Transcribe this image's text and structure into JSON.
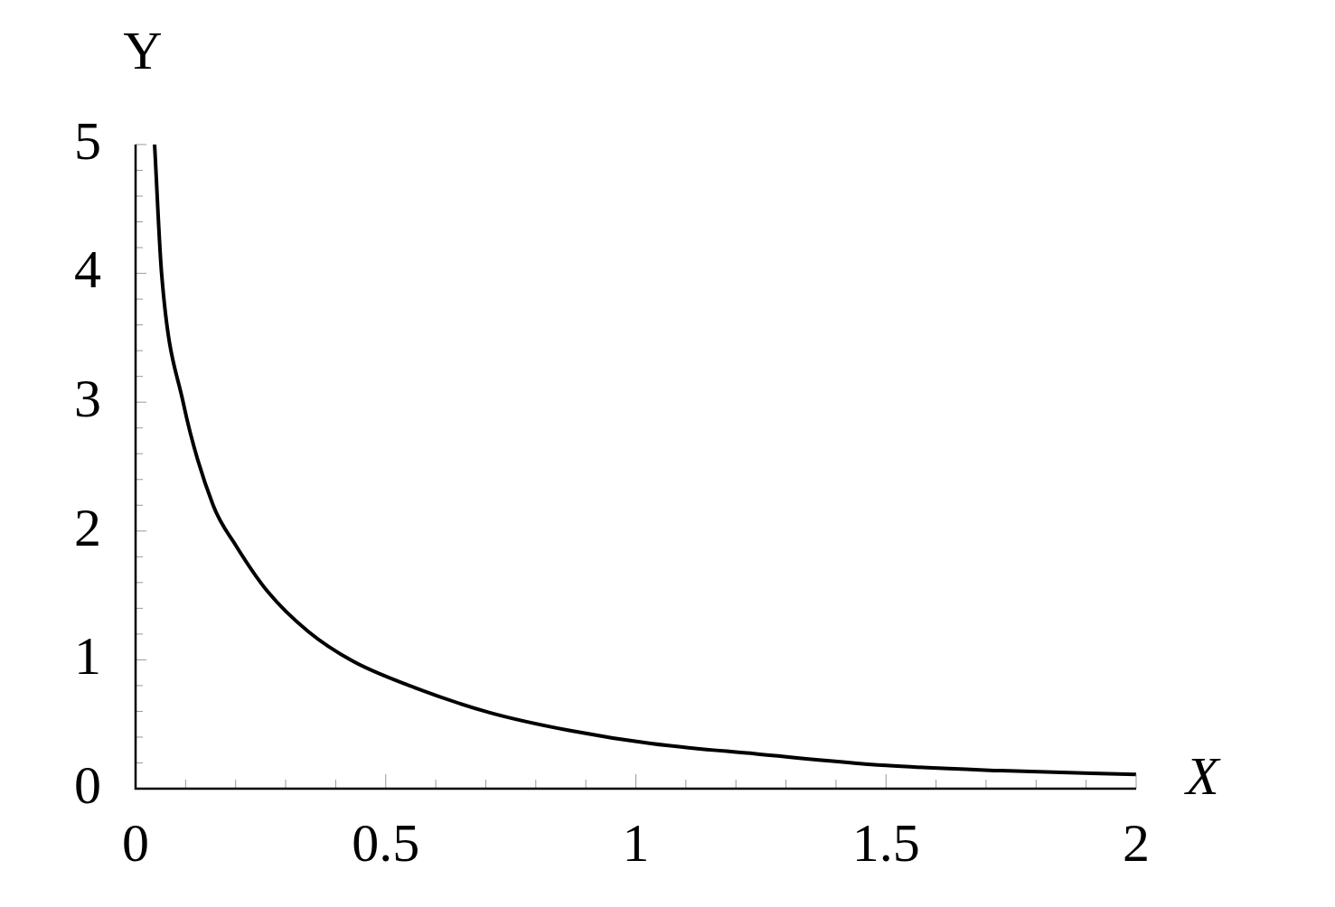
{
  "chart_data": {
    "type": "line",
    "xlabel": "X",
    "ylabel": "Y",
    "x": [
      0.038,
      0.052,
      0.095,
      0.155,
      0.2,
      0.264,
      0.345,
      0.434,
      0.547,
      0.708,
      0.869,
      1.03,
      1.24,
      1.5,
      1.73,
      2.0
    ],
    "series": [
      {
        "color": "#000000",
        "values": [
          5,
          4,
          3,
          2.2,
          1.89,
          1.53,
          1.22,
          0.99,
          0.8,
          0.59,
          0.45,
          0.35,
          0.27,
          0.18,
          0.14,
          0.11
        ]
      }
    ],
    "xlim": [
      0,
      2
    ],
    "ylim": [
      0,
      5
    ],
    "xticks": [
      0,
      {
        "value": 0.1,
        "label": null
      },
      {
        "value": 0.2,
        "label": null
      },
      {
        "value": 0.3,
        "label": null
      },
      {
        "value": 0.4,
        "label": null
      },
      0.5,
      {
        "value": 0.6,
        "label": null
      },
      {
        "value": 0.7,
        "label": null
      },
      {
        "value": 0.8,
        "label": null
      },
      {
        "value": 0.9,
        "label": null
      },
      1,
      {
        "value": 1.1,
        "label": null
      },
      {
        "value": 1.2,
        "label": null
      },
      {
        "value": 1.3,
        "label": null
      },
      {
        "value": 1.4,
        "label": null
      },
      1.5,
      {
        "value": 1.6,
        "label": null
      },
      {
        "value": 1.7,
        "label": null
      },
      {
        "value": 1.8,
        "label": null
      },
      {
        "value": 1.9,
        "label": null
      },
      2
    ],
    "yticks": [
      0,
      {
        "value": 0.2,
        "label": null
      },
      {
        "value": 0.4,
        "label": null
      },
      {
        "value": 0.6,
        "label": null
      },
      {
        "value": 0.8,
        "label": null
      },
      1,
      {
        "value": 1.2,
        "label": null
      },
      {
        "value": 1.4,
        "label": null
      },
      {
        "value": 1.6,
        "label": null
      },
      {
        "value": 1.8,
        "label": null
      },
      2,
      {
        "value": 2.2,
        "label": null
      },
      {
        "value": 2.4,
        "label": null
      },
      {
        "value": 2.6,
        "label": null
      },
      {
        "value": 2.8,
        "label": null
      },
      3,
      {
        "value": 3.2,
        "label": null
      },
      {
        "value": 3.4,
        "label": null
      },
      {
        "value": 3.6,
        "label": null
      },
      {
        "value": 3.8,
        "label": null
      },
      4,
      {
        "value": 4.2,
        "label": null
      },
      {
        "value": 4.4,
        "label": null
      },
      {
        "value": 4.6,
        "label": null
      },
      {
        "value": 4.8,
        "label": null
      },
      5
    ],
    "marker": "none",
    "line_style": "solid"
  }
}
